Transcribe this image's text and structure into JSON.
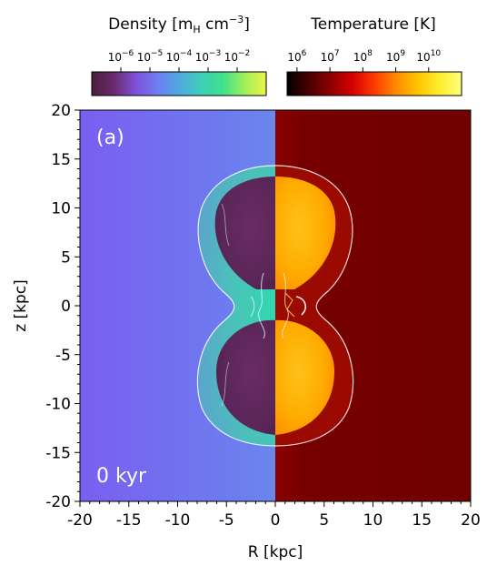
{
  "chart_data": {
    "type": "heatmap",
    "panel_label": "(a)",
    "time_label": "0 kyr",
    "xlabel": "R [kpc]",
    "ylabel": "z [kpc]",
    "xlim": [
      -20,
      20
    ],
    "ylim": [
      -20,
      20
    ],
    "x_ticks": [
      -20,
      -15,
      -10,
      -5,
      0,
      5,
      10,
      15,
      20
    ],
    "y_ticks": [
      -20,
      -15,
      -10,
      -5,
      0,
      5,
      10,
      15,
      20
    ],
    "x_tick_labels": [
      "-20",
      "-15",
      "-10",
      "-5",
      "0",
      "5",
      "10",
      "15",
      "20"
    ],
    "y_tick_labels": [
      "-20",
      "-15",
      "-10",
      "-5",
      "0",
      "5",
      "10",
      "15",
      "20"
    ],
    "left_panel": {
      "quantity": "Density",
      "R_range": [
        -20,
        0
      ]
    },
    "right_panel": {
      "quantity": "Temperature",
      "R_range": [
        0,
        20
      ]
    },
    "colorbars": [
      {
        "title_prefix": "Density ",
        "title_unit": "[m",
        "title_unit_sub": "H",
        "title_unit_rest": " cm",
        "title_unit_exp": "−3",
        "title_unit_close": "]",
        "scale": "log",
        "range_exponents": [
          -7,
          -1
        ],
        "tick_base": "10",
        "tick_exponents": [
          "−6",
          "−5",
          "−4",
          "−3",
          "−2"
        ],
        "tick_values": [
          -6,
          -5,
          -4,
          -3,
          -2
        ],
        "colormap": [
          "#4b1e3c",
          "#6a2a6a",
          "#7e4fd8",
          "#6e7df2",
          "#4fa8e0",
          "#3fcfb8",
          "#3ee08e",
          "#9ef05a",
          "#eef24a"
        ]
      },
      {
        "title": "Temperature [K]",
        "scale": "log",
        "range_exponents": [
          5.7,
          11.0
        ],
        "tick_base": "10",
        "tick_exponents": [
          "6",
          "7",
          "8",
          "9",
          "10"
        ],
        "tick_values": [
          6,
          7,
          8,
          9,
          10
        ],
        "colormap": [
          "#000000",
          "#4a0000",
          "#8c0000",
          "#d60000",
          "#ff3b00",
          "#ff8a00",
          "#ffc400",
          "#ffee30",
          "#ffff80"
        ]
      }
    ],
    "background_colors": {
      "density_ambient": "#7466ee",
      "density_shell": "#45c9b5",
      "density_bubble": "#5c2a5e",
      "temperature_ambient": "#730000",
      "temperature_shell": "#9a0a00",
      "temperature_bubble": "#ffa800",
      "shock_front": "#ffffff"
    }
  }
}
